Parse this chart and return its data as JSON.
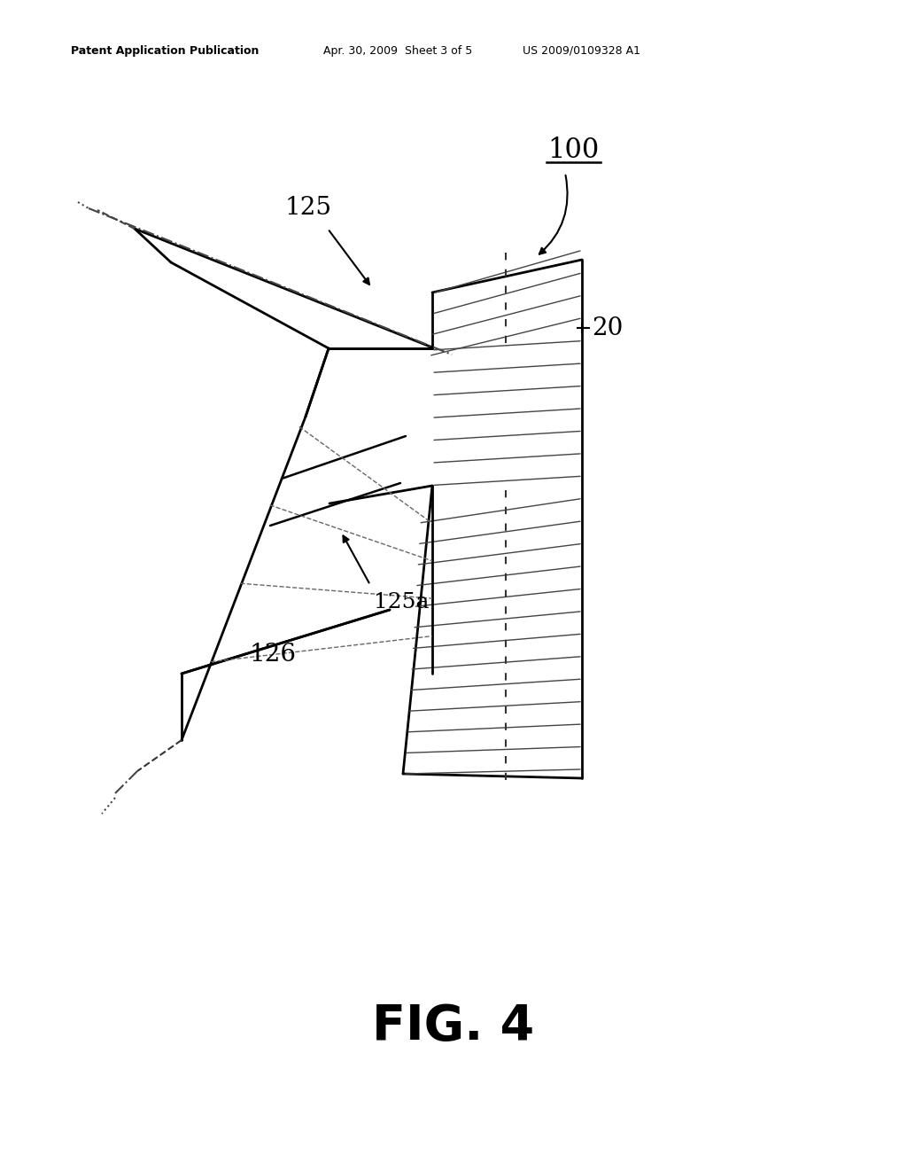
{
  "bg_color": "#ffffff",
  "line_color": "#000000",
  "header_text": "Patent Application Publication",
  "header_date": "Apr. 30, 2009  Sheet 3 of 5",
  "header_patent": "US 2009/0109328 A1",
  "fig_label": "FIG. 4"
}
